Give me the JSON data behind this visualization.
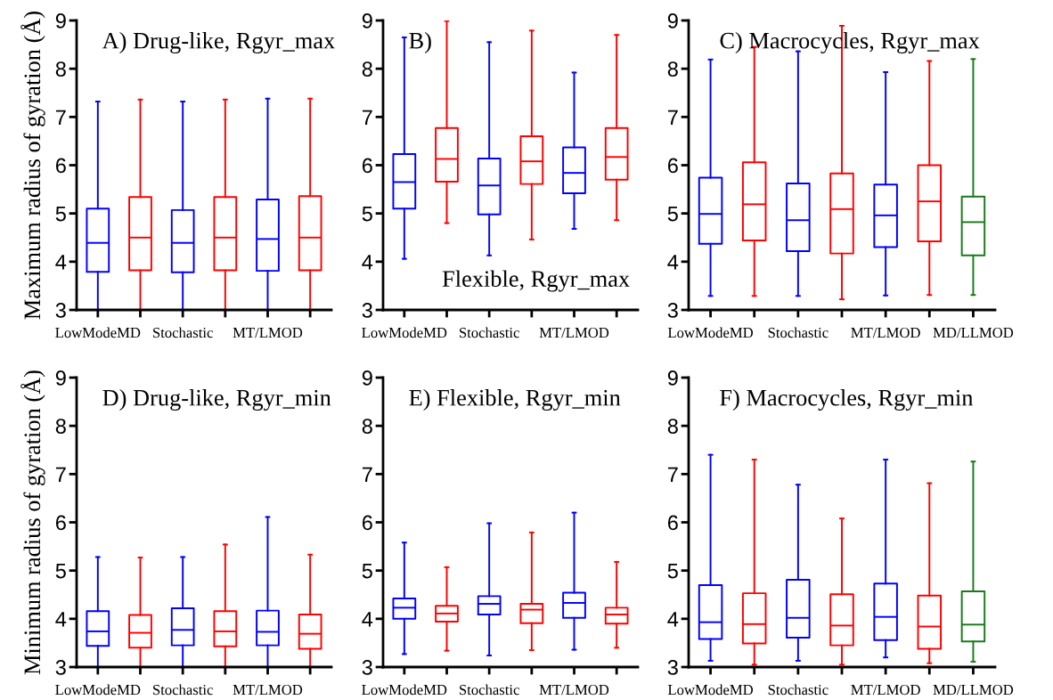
{
  "chart_data": [
    {
      "type": "box",
      "title": "A) Drug-like, Rgyr_max",
      "ylabel": "Maximum radius of gyration (Å)",
      "categories": [
        "LowModeMD",
        null,
        "Stochastic",
        null,
        "MT/LMOD",
        null
      ],
      "ylim": [
        3,
        9
      ],
      "yticks": [
        3,
        4,
        5,
        6,
        7,
        8,
        9
      ],
      "grid": false,
      "series": [
        {
          "color": "#0000ff",
          "boxes": [
            {
              "low": 3,
              "q1": 3.79,
              "median": 4.39,
              "q3": 5.1,
              "high": 7.32
            },
            null,
            {
              "low": 3,
              "q1": 3.78,
              "median": 4.39,
              "q3": 5.07,
              "high": 7.32
            },
            null,
            {
              "low": 3,
              "q1": 3.81,
              "median": 4.47,
              "q3": 5.29,
              "high": 7.38
            },
            null
          ]
        },
        {
          "color": "#ff0000",
          "boxes": [
            null,
            {
              "low": 3,
              "q1": 3.82,
              "median": 4.5,
              "q3": 5.34,
              "high": 7.36
            },
            null,
            {
              "low": 3,
              "q1": 3.82,
              "median": 4.5,
              "q3": 5.34,
              "high": 7.36
            },
            null,
            {
              "low": 3,
              "q1": 3.82,
              "median": 4.5,
              "q3": 5.36,
              "high": 7.38
            }
          ]
        }
      ]
    },
    {
      "type": "box",
      "title": "B)",
      "annotations": [
        "Flexible, Rgyr_max"
      ],
      "categories": [
        "LowModeMD",
        null,
        "Stochastic",
        null,
        "MT/LMOD",
        null
      ],
      "ylim": [
        3,
        9
      ],
      "yticks": [
        3,
        4,
        5,
        6,
        7,
        8,
        9
      ],
      "grid": false,
      "series": [
        {
          "color": "#0000ff",
          "boxes": [
            {
              "low": 4.06,
              "q1": 5.1,
              "median": 5.65,
              "q3": 6.23,
              "high": 8.65
            },
            null,
            {
              "low": 4.13,
              "q1": 4.98,
              "median": 5.58,
              "q3": 6.14,
              "high": 8.55
            },
            null,
            {
              "low": 4.68,
              "q1": 5.42,
              "median": 5.84,
              "q3": 6.37,
              "high": 7.92
            },
            null
          ]
        },
        {
          "color": "#ff0000",
          "boxes": [
            null,
            {
              "low": 4.8,
              "q1": 5.66,
              "median": 6.13,
              "q3": 6.77,
              "high": 8.99
            },
            null,
            {
              "low": 4.46,
              "q1": 5.61,
              "median": 6.08,
              "q3": 6.6,
              "high": 8.79
            },
            null,
            {
              "low": 4.86,
              "q1": 5.7,
              "median": 6.17,
              "q3": 6.77,
              "high": 8.7
            }
          ]
        }
      ]
    },
    {
      "type": "box",
      "title": "C) Macrocycles, Rgyr_max",
      "categories": [
        "LowModeMD",
        null,
        "Stochastic",
        null,
        "MT/LMOD",
        null,
        "MD/LLMOD"
      ],
      "ylim": [
        3,
        9
      ],
      "yticks": [
        3,
        4,
        5,
        6,
        7,
        8,
        9
      ],
      "grid": false,
      "series": [
        {
          "color": "#0000ff",
          "boxes": [
            {
              "low": 3.29,
              "q1": 4.37,
              "median": 4.99,
              "q3": 5.74,
              "high": 8.19
            },
            null,
            {
              "low": 3.29,
              "q1": 4.22,
              "median": 4.86,
              "q3": 5.62,
              "high": 8.36
            },
            null,
            {
              "low": 3.3,
              "q1": 4.3,
              "median": 4.96,
              "q3": 5.6,
              "high": 7.93
            },
            null,
            null
          ]
        },
        {
          "color": "#ff0000",
          "boxes": [
            null,
            {
              "low": 3.29,
              "q1": 4.44,
              "median": 5.19,
              "q3": 6.06,
              "high": 8.45
            },
            null,
            {
              "low": 3.22,
              "q1": 4.17,
              "median": 5.09,
              "q3": 5.83,
              "high": 8.89
            },
            null,
            {
              "low": 3.31,
              "q1": 4.42,
              "median": 5.25,
              "q3": 6.0,
              "high": 8.16
            },
            null
          ]
        },
        {
          "color": "#1a7a1a",
          "boxes": [
            null,
            null,
            null,
            null,
            null,
            null,
            {
              "low": 3.31,
              "q1": 4.13,
              "median": 4.82,
              "q3": 5.35,
              "high": 8.2
            }
          ]
        }
      ]
    },
    {
      "type": "box",
      "title": "D) Drug-like, Rgyr_min",
      "ylabel": "Minimum radius of gyration (Å)",
      "categories": [
        "LowModeMD",
        null,
        "Stochastic",
        null,
        "MT/LMOD",
        null
      ],
      "ylim": [
        3,
        9
      ],
      "yticks": [
        3,
        4,
        5,
        6,
        7,
        8,
        9
      ],
      "grid": false,
      "series": [
        {
          "color": "#0000ff",
          "boxes": [
            {
              "low": 3,
              "q1": 3.44,
              "median": 3.74,
              "q3": 4.16,
              "high": 5.28
            },
            null,
            {
              "low": 3,
              "q1": 3.45,
              "median": 3.77,
              "q3": 4.22,
              "high": 5.28
            },
            null,
            {
              "low": 3,
              "q1": 3.45,
              "median": 3.73,
              "q3": 4.17,
              "high": 6.11
            },
            null
          ]
        },
        {
          "color": "#ff0000",
          "boxes": [
            null,
            {
              "low": 3,
              "q1": 3.4,
              "median": 3.71,
              "q3": 4.08,
              "high": 5.27
            },
            null,
            {
              "low": 3,
              "q1": 3.43,
              "median": 3.74,
              "q3": 4.16,
              "high": 5.54
            },
            null,
            {
              "low": 3,
              "q1": 3.38,
              "median": 3.69,
              "q3": 4.09,
              "high": 5.33
            }
          ]
        }
      ]
    },
    {
      "type": "box",
      "title": "E) Flexible, Rgyr_min",
      "categories": [
        "LowModeMD",
        null,
        "Stochastic",
        null,
        "MT/LMOD",
        null
      ],
      "ylim": [
        3,
        9
      ],
      "yticks": [
        3,
        4,
        5,
        6,
        7,
        8,
        9
      ],
      "grid": false,
      "series": [
        {
          "color": "#0000ff",
          "boxes": [
            {
              "low": 3.27,
              "q1": 4.0,
              "median": 4.23,
              "q3": 4.42,
              "high": 5.58
            },
            null,
            {
              "low": 3.24,
              "q1": 4.09,
              "median": 4.31,
              "q3": 4.47,
              "high": 5.98
            },
            null,
            {
              "low": 3.36,
              "q1": 4.02,
              "median": 4.33,
              "q3": 4.54,
              "high": 6.2
            },
            null
          ]
        },
        {
          "color": "#ff0000",
          "boxes": [
            null,
            {
              "low": 3.34,
              "q1": 3.94,
              "median": 4.11,
              "q3": 4.27,
              "high": 5.07
            },
            null,
            {
              "low": 3.35,
              "q1": 3.91,
              "median": 4.19,
              "q3": 4.31,
              "high": 5.79
            },
            null,
            {
              "low": 3.4,
              "q1": 3.9,
              "median": 4.09,
              "q3": 4.23,
              "high": 5.18
            }
          ]
        }
      ]
    },
    {
      "type": "box",
      "title": "F) Macrocycles, Rgyr_min",
      "categories": [
        "LowModeMD",
        null,
        "Stochastic",
        null,
        "MT/LMOD",
        null,
        "MD/LLMOD"
      ],
      "ylim": [
        3,
        9
      ],
      "yticks": [
        3,
        4,
        5,
        6,
        7,
        8,
        9
      ],
      "grid": false,
      "series": [
        {
          "color": "#0000ff",
          "boxes": [
            {
              "low": 3.13,
              "q1": 3.58,
              "median": 3.93,
              "q3": 4.7,
              "high": 7.4
            },
            null,
            {
              "low": 3.13,
              "q1": 3.61,
              "median": 4.02,
              "q3": 4.81,
              "high": 6.78
            },
            null,
            {
              "low": 3.2,
              "q1": 3.56,
              "median": 4.04,
              "q3": 4.73,
              "high": 7.3
            },
            null,
            null
          ]
        },
        {
          "color": "#ff0000",
          "boxes": [
            null,
            {
              "low": 3.05,
              "q1": 3.49,
              "median": 3.89,
              "q3": 4.53,
              "high": 7.3
            },
            null,
            {
              "low": 3.05,
              "q1": 3.45,
              "median": 3.86,
              "q3": 4.51,
              "high": 6.08
            },
            null,
            {
              "low": 3.08,
              "q1": 3.38,
              "median": 3.84,
              "q3": 4.48,
              "high": 6.81
            },
            null
          ]
        },
        {
          "color": "#1a7a1a",
          "boxes": [
            null,
            null,
            null,
            null,
            null,
            null,
            {
              "low": 3.11,
              "q1": 3.53,
              "median": 3.88,
              "q3": 4.57,
              "high": 7.26
            }
          ]
        }
      ]
    }
  ]
}
